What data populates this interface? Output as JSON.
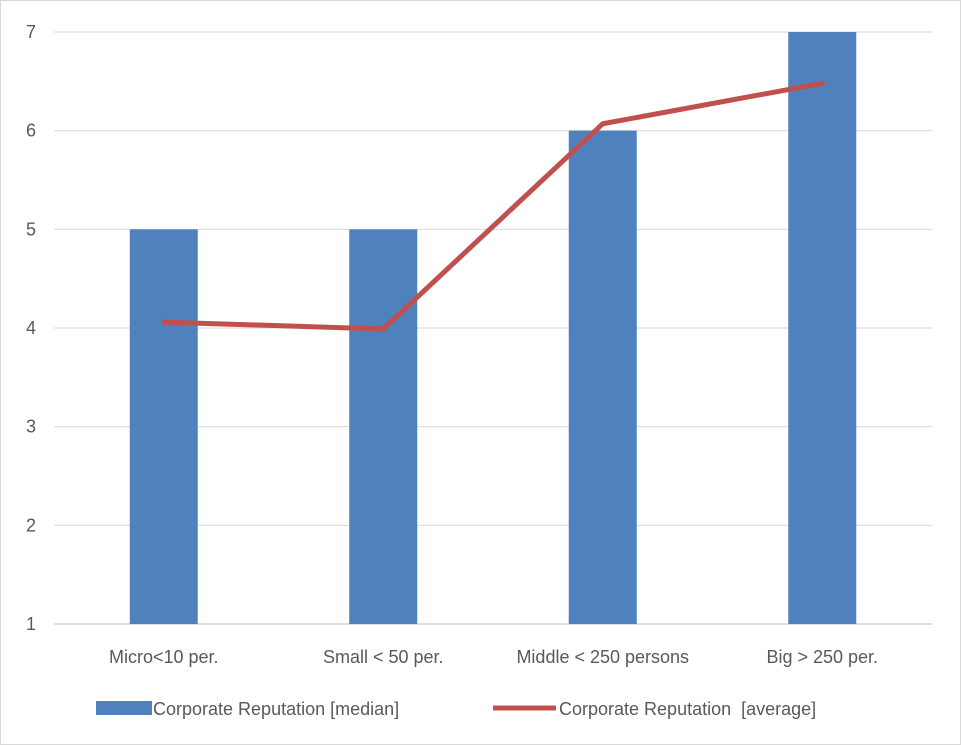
{
  "chart_data": {
    "type": "bar",
    "categories": [
      "Micro<10 per.",
      "Small < 50 per.",
      "Middle < 250 persons",
      "Big > 250 per."
    ],
    "series": [
      {
        "name": "Corporate Reputation [median]",
        "type": "bar",
        "values": [
          5,
          5,
          6,
          7
        ],
        "color": "#4f81bd"
      },
      {
        "name": "Corporate Reputation  [average]",
        "type": "line",
        "values": [
          4.06,
          3.99,
          6.07,
          6.48
        ],
        "color": "#c0504d"
      }
    ],
    "title": "",
    "xlabel": "",
    "ylabel": "",
    "ylim": [
      1,
      7
    ],
    "yticks": [
      1,
      2,
      3,
      4,
      5,
      6,
      7
    ],
    "grid": true,
    "legend_position": "bottom"
  },
  "colors": {
    "grid": "#d9d9d9",
    "axis": "#bfbfbf",
    "text": "#595959"
  }
}
